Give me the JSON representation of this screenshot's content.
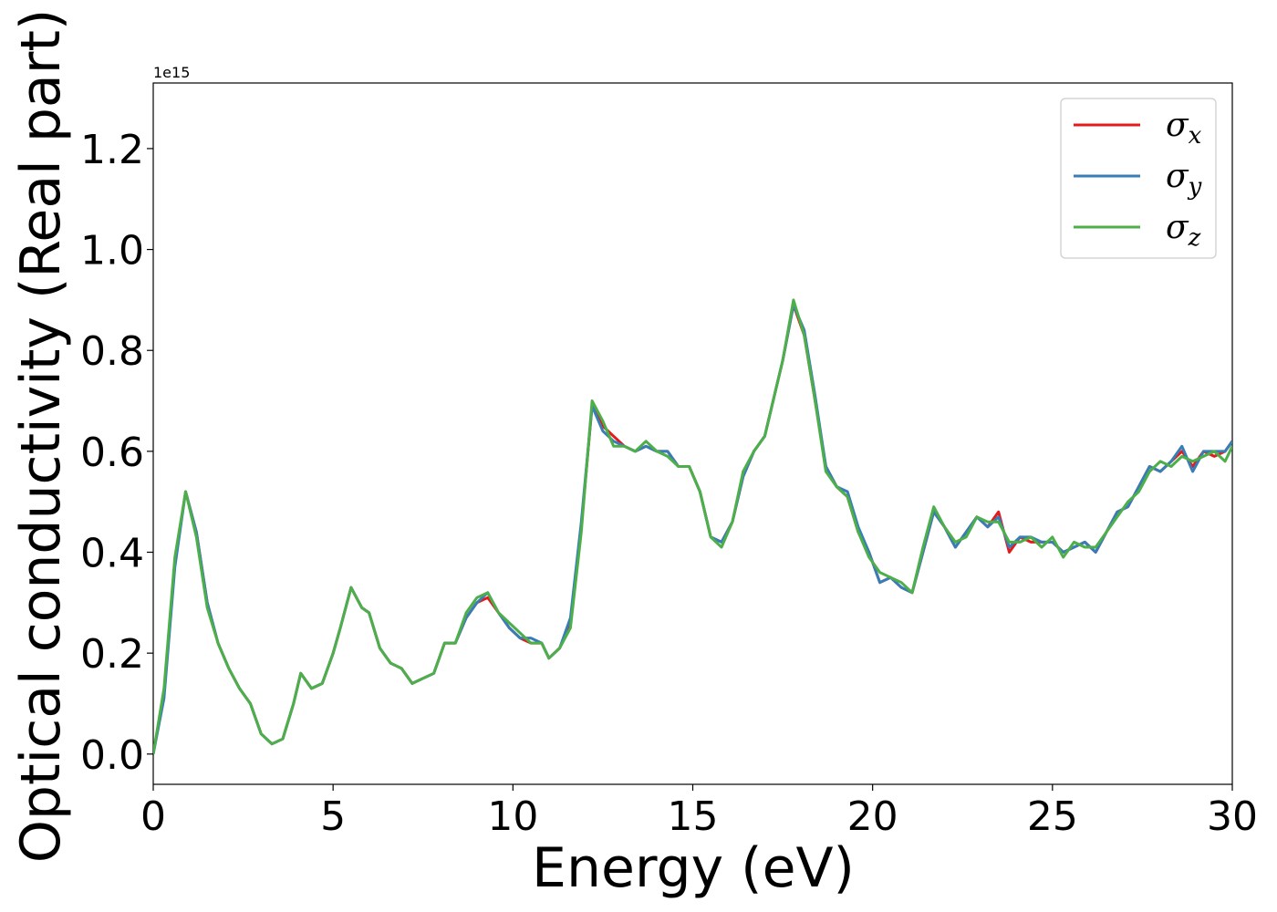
{
  "chart_data": {
    "type": "line",
    "title": "",
    "xlabel": "Energy (eV)",
    "ylabel": "Optical conductivity (Real part)",
    "y_offset_label": "1e15",
    "xlim": [
      0,
      30
    ],
    "ylim": [
      -0.06,
      1.33
    ],
    "xticks": [
      0,
      5,
      10,
      15,
      20,
      25,
      30
    ],
    "xtick_labels": [
      "0",
      "5",
      "10",
      "15",
      "20",
      "25",
      "30"
    ],
    "yticks": [
      0.0,
      0.2,
      0.4,
      0.6,
      0.8,
      1.0,
      1.2
    ],
    "ytick_labels": [
      "0.0",
      "0.2",
      "0.4",
      "0.6",
      "0.8",
      "1.0",
      "1.2"
    ],
    "grid": false,
    "legend_position": "top-right",
    "series": [
      {
        "name": "σx",
        "label_main": "σ",
        "label_sub": "x",
        "color": "#e41a1c",
        "x": [
          0,
          0.3,
          0.6,
          0.9,
          1.2,
          1.5,
          1.8,
          2.1,
          2.4,
          2.7,
          3.0,
          3.3,
          3.6,
          3.9,
          4.1,
          4.4,
          4.7,
          5.0,
          5.2,
          5.5,
          5.8,
          6.0,
          6.3,
          6.6,
          6.9,
          7.2,
          7.5,
          7.8,
          8.1,
          8.4,
          8.7,
          9.0,
          9.3,
          9.6,
          9.9,
          10.2,
          10.5,
          10.8,
          11.0,
          11.3,
          11.6,
          11.9,
          12.2,
          12.5,
          12.8,
          13.1,
          13.4,
          13.7,
          14.0,
          14.3,
          14.6,
          14.9,
          15.2,
          15.5,
          15.8,
          16.1,
          16.4,
          16.7,
          17.0,
          17.3,
          17.5,
          17.8,
          18.1,
          18.4,
          18.7,
          19.0,
          19.3,
          19.6,
          19.9,
          20.2,
          20.5,
          20.8,
          21.1,
          21.4,
          21.7,
          22.0,
          22.3,
          22.6,
          22.9,
          23.2,
          23.5,
          23.8,
          24.1,
          24.4,
          24.7,
          25.0,
          25.3,
          25.6,
          25.9,
          26.2,
          26.5,
          26.8,
          27.1,
          27.4,
          27.7,
          28.0,
          28.3,
          28.6,
          28.9,
          29.2,
          29.5,
          29.8,
          30.0
        ],
        "y": [
          0,
          0.12,
          0.38,
          0.52,
          0.44,
          0.3,
          0.22,
          0.17,
          0.13,
          0.1,
          0.04,
          0.02,
          0.03,
          0.1,
          0.16,
          0.13,
          0.14,
          0.2,
          0.25,
          0.33,
          0.29,
          0.28,
          0.21,
          0.18,
          0.17,
          0.14,
          0.15,
          0.16,
          0.22,
          0.22,
          0.27,
          0.3,
          0.31,
          0.28,
          0.25,
          0.23,
          0.22,
          0.22,
          0.19,
          0.21,
          0.26,
          0.45,
          0.69,
          0.65,
          0.63,
          0.61,
          0.6,
          0.61,
          0.6,
          0.6,
          0.57,
          0.57,
          0.52,
          0.43,
          0.42,
          0.46,
          0.55,
          0.6,
          0.63,
          0.72,
          0.78,
          0.89,
          0.83,
          0.7,
          0.57,
          0.53,
          0.51,
          0.44,
          0.4,
          0.34,
          0.35,
          0.33,
          0.32,
          0.4,
          0.48,
          0.45,
          0.41,
          0.44,
          0.47,
          0.45,
          0.48,
          0.4,
          0.43,
          0.42,
          0.42,
          0.42,
          0.4,
          0.41,
          0.42,
          0.4,
          0.44,
          0.48,
          0.49,
          0.53,
          0.57,
          0.56,
          0.58,
          0.6,
          0.57,
          0.6,
          0.59,
          0.6,
          0.62
        ]
      },
      {
        "name": "σy",
        "label_main": "σ",
        "label_sub": "y",
        "color": "#377eb8",
        "x": [
          0,
          0.3,
          0.6,
          0.9,
          1.2,
          1.5,
          1.8,
          2.1,
          2.4,
          2.7,
          3.0,
          3.3,
          3.6,
          3.9,
          4.1,
          4.4,
          4.7,
          5.0,
          5.2,
          5.5,
          5.8,
          6.0,
          6.3,
          6.6,
          6.9,
          7.2,
          7.5,
          7.8,
          8.1,
          8.4,
          8.7,
          9.0,
          9.3,
          9.6,
          9.9,
          10.2,
          10.5,
          10.8,
          11.0,
          11.3,
          11.6,
          11.9,
          12.2,
          12.5,
          12.8,
          13.1,
          13.4,
          13.7,
          14.0,
          14.3,
          14.6,
          14.9,
          15.2,
          15.5,
          15.8,
          16.1,
          16.4,
          16.7,
          17.0,
          17.3,
          17.5,
          17.8,
          18.1,
          18.4,
          18.7,
          19.0,
          19.3,
          19.6,
          19.9,
          20.2,
          20.5,
          20.8,
          21.1,
          21.4,
          21.7,
          22.0,
          22.3,
          22.6,
          22.9,
          23.2,
          23.5,
          23.8,
          24.1,
          24.4,
          24.7,
          25.0,
          25.3,
          25.6,
          25.9,
          26.2,
          26.5,
          26.8,
          27.1,
          27.4,
          27.7,
          28.0,
          28.3,
          28.6,
          28.9,
          29.2,
          29.5,
          29.8,
          30.0
        ],
        "y": [
          0,
          0.11,
          0.37,
          0.52,
          0.44,
          0.3,
          0.22,
          0.17,
          0.13,
          0.1,
          0.04,
          0.02,
          0.03,
          0.1,
          0.16,
          0.13,
          0.14,
          0.2,
          0.25,
          0.33,
          0.29,
          0.28,
          0.21,
          0.18,
          0.17,
          0.14,
          0.15,
          0.16,
          0.22,
          0.22,
          0.27,
          0.3,
          0.32,
          0.28,
          0.25,
          0.23,
          0.23,
          0.22,
          0.19,
          0.21,
          0.27,
          0.46,
          0.69,
          0.64,
          0.62,
          0.61,
          0.6,
          0.61,
          0.6,
          0.6,
          0.57,
          0.57,
          0.52,
          0.43,
          0.42,
          0.46,
          0.55,
          0.6,
          0.63,
          0.72,
          0.78,
          0.89,
          0.84,
          0.71,
          0.57,
          0.53,
          0.52,
          0.45,
          0.4,
          0.34,
          0.35,
          0.33,
          0.32,
          0.4,
          0.48,
          0.45,
          0.41,
          0.44,
          0.47,
          0.45,
          0.47,
          0.41,
          0.43,
          0.43,
          0.42,
          0.42,
          0.4,
          0.41,
          0.42,
          0.4,
          0.44,
          0.48,
          0.49,
          0.53,
          0.57,
          0.56,
          0.58,
          0.61,
          0.56,
          0.6,
          0.6,
          0.6,
          0.62
        ]
      },
      {
        "name": "σz",
        "label_main": "σ",
        "label_sub": "z",
        "color": "#4daf4a",
        "x": [
          0,
          0.3,
          0.6,
          0.9,
          1.2,
          1.5,
          1.8,
          2.1,
          2.4,
          2.7,
          3.0,
          3.3,
          3.6,
          3.9,
          4.1,
          4.4,
          4.7,
          5.0,
          5.2,
          5.5,
          5.8,
          6.0,
          6.3,
          6.6,
          6.9,
          7.2,
          7.5,
          7.8,
          8.1,
          8.4,
          8.7,
          9.0,
          9.3,
          9.6,
          9.9,
          10.2,
          10.5,
          10.8,
          11.0,
          11.3,
          11.6,
          11.9,
          12.2,
          12.5,
          12.8,
          13.1,
          13.4,
          13.7,
          14.0,
          14.3,
          14.6,
          14.9,
          15.2,
          15.5,
          15.8,
          16.1,
          16.4,
          16.7,
          17.0,
          17.3,
          17.5,
          17.8,
          18.1,
          18.4,
          18.7,
          19.0,
          19.3,
          19.6,
          19.9,
          20.2,
          20.5,
          20.8,
          21.1,
          21.4,
          21.7,
          22.0,
          22.3,
          22.6,
          22.9,
          23.2,
          23.5,
          23.8,
          24.1,
          24.4,
          24.7,
          25.0,
          25.3,
          25.6,
          25.9,
          26.2,
          26.5,
          26.8,
          27.1,
          27.4,
          27.7,
          28.0,
          28.3,
          28.6,
          28.9,
          29.2,
          29.5,
          29.8,
          30.0
        ],
        "y": [
          0,
          0.13,
          0.39,
          0.52,
          0.43,
          0.29,
          0.22,
          0.17,
          0.13,
          0.1,
          0.04,
          0.02,
          0.03,
          0.1,
          0.16,
          0.13,
          0.14,
          0.2,
          0.25,
          0.33,
          0.29,
          0.28,
          0.21,
          0.18,
          0.17,
          0.14,
          0.15,
          0.16,
          0.22,
          0.22,
          0.28,
          0.31,
          0.32,
          0.28,
          0.26,
          0.24,
          0.22,
          0.22,
          0.19,
          0.21,
          0.25,
          0.44,
          0.7,
          0.66,
          0.61,
          0.61,
          0.6,
          0.62,
          0.6,
          0.59,
          0.57,
          0.57,
          0.52,
          0.43,
          0.41,
          0.46,
          0.56,
          0.6,
          0.63,
          0.72,
          0.78,
          0.9,
          0.83,
          0.7,
          0.56,
          0.53,
          0.51,
          0.44,
          0.39,
          0.36,
          0.35,
          0.34,
          0.32,
          0.41,
          0.49,
          0.45,
          0.42,
          0.43,
          0.47,
          0.46,
          0.46,
          0.42,
          0.42,
          0.43,
          0.41,
          0.43,
          0.39,
          0.42,
          0.41,
          0.41,
          0.44,
          0.47,
          0.5,
          0.52,
          0.56,
          0.58,
          0.57,
          0.59,
          0.58,
          0.59,
          0.6,
          0.58,
          0.61
        ]
      }
    ]
  }
}
